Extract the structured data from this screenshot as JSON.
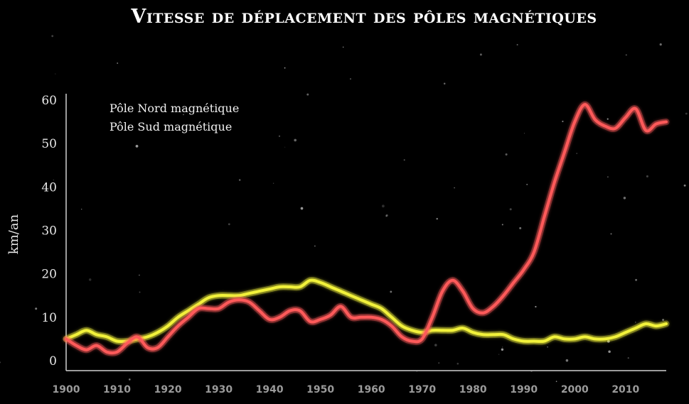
{
  "chart_data": {
    "type": "line",
    "title": "Vitesse de déplacement des pôles magnétiques",
    "ylabel": "km/an",
    "xlabel": "",
    "xlim": [
      1900,
      2018
    ],
    "ylim": [
      0,
      62
    ],
    "grid": false,
    "legend_position": "top-left",
    "x_ticks": [
      1900,
      1910,
      1920,
      1930,
      1940,
      1950,
      1960,
      1970,
      1980,
      1990,
      2000,
      2010
    ],
    "y_ticks": [
      0,
      10,
      20,
      30,
      40,
      50,
      60
    ],
    "series": [
      {
        "name": "Pôle Nord magnétique",
        "color": "#ff5a5a",
        "x": [
          1900,
          1902,
          1904,
          1906,
          1908,
          1910,
          1912,
          1914,
          1916,
          1918,
          1920,
          1922,
          1924,
          1926,
          1928,
          1930,
          1932,
          1934,
          1936,
          1938,
          1940,
          1942,
          1944,
          1946,
          1948,
          1950,
          1952,
          1954,
          1956,
          1958,
          1960,
          1962,
          1964,
          1966,
          1968,
          1970,
          1972,
          1974,
          1976,
          1978,
          1980,
          1982,
          1984,
          1986,
          1988,
          1990,
          1992,
          1994,
          1996,
          1998,
          2000,
          2002,
          2004,
          2006,
          2008,
          2010,
          2012,
          2014,
          2016,
          2018
        ],
        "y": [
          5,
          3.5,
          2.5,
          3.5,
          2,
          2,
          4,
          5.5,
          3,
          3,
          5.5,
          8,
          10,
          12,
          12,
          12,
          13.5,
          14,
          13.5,
          11.5,
          9.5,
          10,
          11.5,
          11.5,
          9,
          9.5,
          10.5,
          12.5,
          10,
          10,
          10,
          9.5,
          8,
          5.5,
          4.5,
          5,
          10,
          16,
          18.5,
          16,
          12,
          11,
          12.5,
          15,
          18,
          21,
          25,
          33,
          41,
          48,
          55,
          59,
          55.5,
          54,
          53.5,
          56,
          58,
          53,
          54.5,
          55
        ]
      },
      {
        "name": "Pôle Sud magnétique",
        "color": "#f2f23a",
        "x": [
          1900,
          1902,
          1904,
          1906,
          1908,
          1910,
          1912,
          1914,
          1916,
          1918,
          1920,
          1922,
          1924,
          1926,
          1928,
          1930,
          1932,
          1934,
          1936,
          1938,
          1940,
          1942,
          1944,
          1946,
          1948,
          1950,
          1952,
          1954,
          1956,
          1958,
          1960,
          1962,
          1964,
          1966,
          1968,
          1970,
          1972,
          1974,
          1976,
          1978,
          1980,
          1982,
          1984,
          1986,
          1988,
          1990,
          1992,
          1994,
          1996,
          1998,
          2000,
          2002,
          2004,
          2006,
          2008,
          2010,
          2012,
          2014,
          2016,
          2018
        ],
        "y": [
          5,
          6,
          7,
          6,
          5.5,
          4.5,
          4.5,
          5,
          5.5,
          6.5,
          8,
          10,
          11.5,
          13,
          14.5,
          15,
          15,
          15,
          15.5,
          16,
          16.5,
          17,
          17,
          17,
          18.5,
          18,
          17,
          16,
          15,
          14,
          13,
          12,
          10,
          8,
          7,
          6.5,
          7,
          7,
          7,
          7.5,
          6.5,
          6,
          6,
          6,
          5,
          4.5,
          4.5,
          4.5,
          5.5,
          5,
          5,
          5.5,
          5,
          5,
          5.5,
          6.5,
          7.5,
          8.5,
          8,
          8.5
        ]
      }
    ]
  }
}
